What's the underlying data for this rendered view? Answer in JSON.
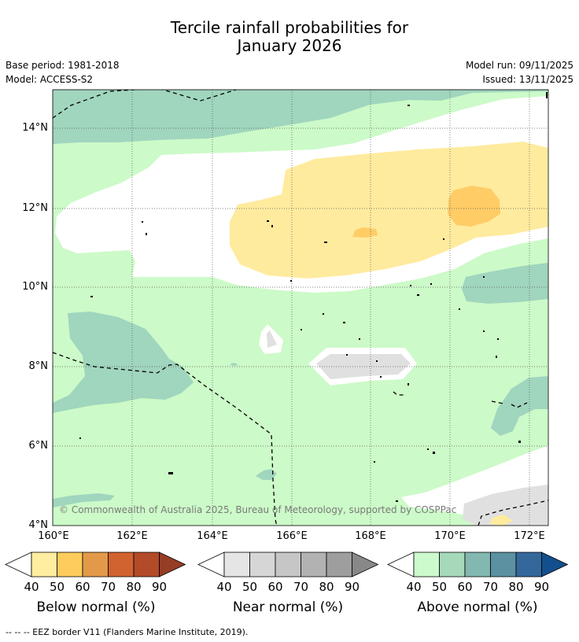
{
  "title": {
    "line1": "Tercile rainfall probabilities for",
    "line2": "January 2026"
  },
  "meta": {
    "base_period": "Base period: 1981-2018",
    "model": "Model: ACCESS-S2",
    "model_run": "Model run: 09/11/2025",
    "issued": "Issued: 13/11/2025"
  },
  "map": {
    "lat_labels": [
      "14°N",
      "12°N",
      "10°N",
      "8°N",
      "6°N",
      "4°N"
    ],
    "lon_labels": [
      "160°E",
      "162°E",
      "164°E",
      "166°E",
      "168°E",
      "170°E",
      "172°E"
    ],
    "copyright": "© Commonwealth of Australia 2025, Bureau of Meteorology, supported by COSPPac",
    "colors": {
      "above_50": "#ccfac8",
      "above_60": "#a0d5be",
      "below_50": "#ffeb9e",
      "below_60": "#ffcc66",
      "near_50": "#e0e0e0"
    }
  },
  "legends": [
    {
      "name": "below",
      "label": "Below normal (%)",
      "ticks": [
        "40",
        "50",
        "60",
        "70",
        "80",
        "90"
      ],
      "colors": [
        "#ffeda0",
        "#fecc5c",
        "#e29a4a",
        "#d0632f",
        "#b34a28",
        "#963d26"
      ]
    },
    {
      "name": "near",
      "label": "Near normal (%)",
      "ticks": [
        "40",
        "50",
        "60",
        "70",
        "80",
        "90"
      ],
      "colors": [
        "#e5e5e5",
        "#d6d6d6",
        "#c6c6c6",
        "#b2b2b2",
        "#9e9e9e",
        "#888888"
      ]
    },
    {
      "name": "above",
      "label": "Above normal (%)",
      "ticks": [
        "40",
        "50",
        "60",
        "70",
        "80",
        "90"
      ],
      "colors": [
        "#ccfacc",
        "#a6d9b9",
        "#82b8b0",
        "#5b91a1",
        "#34689b",
        "#134f8c"
      ]
    }
  ],
  "footer": "-- -- -- EEZ border V11 (Flanders Marine Institute, 2019)."
}
